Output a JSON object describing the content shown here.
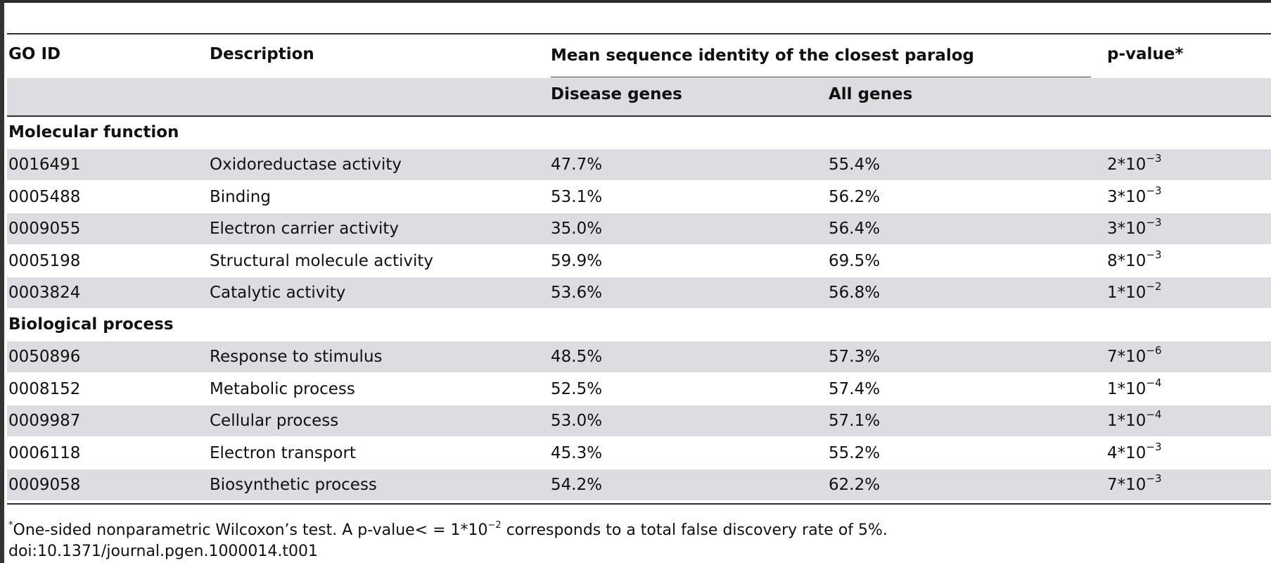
{
  "headers": {
    "go_id": "GO ID",
    "description": "Description",
    "mean_identity": "Mean sequence identity of the closest paralog",
    "disease_genes": "Disease genes",
    "all_genes": "All genes",
    "pvalue": "p-value*"
  },
  "sections": [
    {
      "title": "Molecular function",
      "rows": [
        {
          "id": "0016491",
          "desc": "Oxidoreductase activity",
          "disease": "47.7%",
          "all": "55.4%",
          "p_base": "2*10",
          "p_exp": "−3"
        },
        {
          "id": "0005488",
          "desc": "Binding",
          "disease": "53.1%",
          "all": "56.2%",
          "p_base": "3*10",
          "p_exp": "−3"
        },
        {
          "id": "0009055",
          "desc": "Electron carrier activity",
          "disease": "35.0%",
          "all": "56.4%",
          "p_base": "3*10",
          "p_exp": "−3"
        },
        {
          "id": "0005198",
          "desc": "Structural molecule activity",
          "disease": "59.9%",
          "all": "69.5%",
          "p_base": "8*10",
          "p_exp": "−3"
        },
        {
          "id": "0003824",
          "desc": "Catalytic activity",
          "disease": "53.6%",
          "all": "56.8%",
          "p_base": "1*10",
          "p_exp": "−2"
        }
      ]
    },
    {
      "title": "Biological process",
      "rows": [
        {
          "id": "0050896",
          "desc": "Response to stimulus",
          "disease": "48.5%",
          "all": "57.3%",
          "p_base": "7*10",
          "p_exp": "−6"
        },
        {
          "id": "0008152",
          "desc": "Metabolic process",
          "disease": "52.5%",
          "all": "57.4%",
          "p_base": "1*10",
          "p_exp": "−4"
        },
        {
          "id": "0009987",
          "desc": "Cellular process",
          "disease": "53.0%",
          "all": "57.1%",
          "p_base": "1*10",
          "p_exp": "−4"
        },
        {
          "id": "0006118",
          "desc": "Electron transport",
          "disease": "45.3%",
          "all": "55.2%",
          "p_base": "4*10",
          "p_exp": "−3"
        },
        {
          "id": "0009058",
          "desc": "Biosynthetic process",
          "disease": "54.2%",
          "all": "62.2%",
          "p_base": "7*10",
          "p_exp": "−3"
        }
      ]
    }
  ],
  "footnote": {
    "marker": "*",
    "text_a": "One-sided nonparametric Wilcoxon’s test. A p-value< = 1*10",
    "exp": "−2",
    "text_b": " corresponds to a total false discovery rate of 5%."
  },
  "doi": "doi:10.1371/journal.pgen.1000014.t001"
}
